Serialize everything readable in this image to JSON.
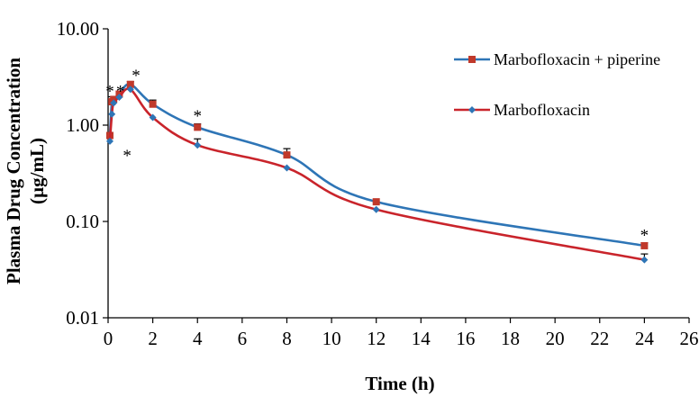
{
  "chart_data": {
    "type": "line",
    "title": "",
    "xlabel": "Time (h)",
    "ylabel": [
      "Plasma Drug Concentration",
      "(µg/mL)"
    ],
    "yscale": "log",
    "xlim": [
      0,
      26
    ],
    "ylim": [
      0.01,
      10
    ],
    "xticks": [
      0,
      2,
      4,
      6,
      8,
      10,
      12,
      14,
      16,
      18,
      20,
      22,
      24,
      26
    ],
    "yticks": [
      0.01,
      0.1,
      1,
      10
    ],
    "ytick_labels": [
      "0.01",
      "0.10",
      "1.00",
      "10.00"
    ],
    "grid": false,
    "legend_position": "top-right",
    "series": [
      {
        "name": "Marbofloxacin + piperine",
        "color": "#2E75B6",
        "marker": "square",
        "marker_color": "#C0392B",
        "x": [
          0.08,
          0.17,
          0.25,
          0.5,
          1,
          2,
          4,
          8,
          12,
          24
        ],
        "y": [
          0.78,
          1.75,
          1.85,
          2.1,
          2.65,
          1.65,
          0.95,
          0.49,
          0.16,
          0.056
        ],
        "err": [
          0.06,
          0.22,
          0.0,
          0.0,
          0.18,
          0.17,
          0.08,
          0.08,
          0.0,
          0.004
        ]
      },
      {
        "name": "Marbofloxacin",
        "color": "#C9242B",
        "marker": "diamond",
        "marker_color": "#2E75B6",
        "x": [
          0.08,
          0.17,
          0.25,
          0.5,
          1,
          2,
          4,
          8,
          12,
          24
        ],
        "y": [
          0.68,
          1.3,
          1.7,
          1.95,
          2.35,
          1.2,
          0.62,
          0.36,
          0.133,
          0.04
        ],
        "err": [
          0.0,
          0.0,
          0.0,
          0.0,
          0.0,
          0.0,
          0.1,
          0.0,
          0.0,
          0.006
        ]
      }
    ],
    "annotations": [
      {
        "text": "*",
        "x": 0.08,
        "y": 2.35
      },
      {
        "text": "*",
        "x": 0.55,
        "y": 2.35
      },
      {
        "text": "*",
        "x": 0.85,
        "y": 0.5
      },
      {
        "text": "*",
        "x": 1.25,
        "y": 3.4
      },
      {
        "text": "*",
        "x": 4,
        "y": 1.3
      },
      {
        "text": "*",
        "x": 24,
        "y": 0.075
      }
    ]
  }
}
